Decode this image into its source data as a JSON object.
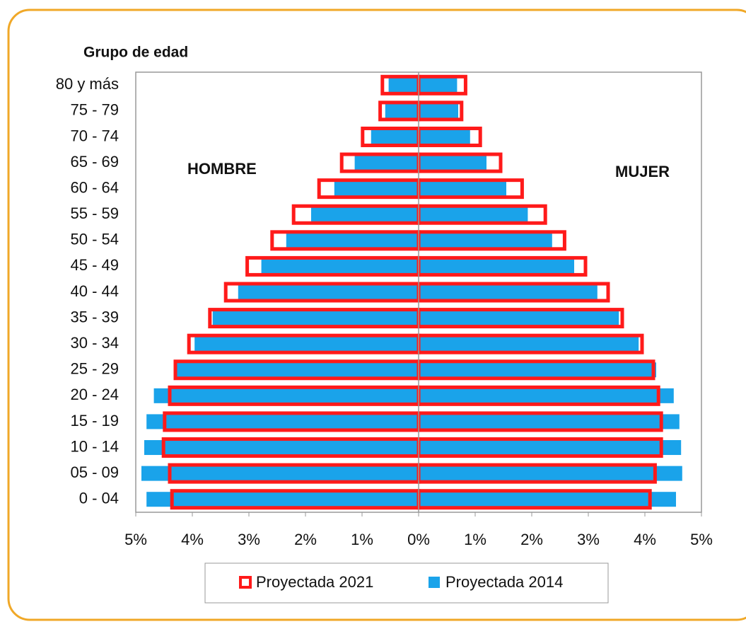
{
  "chart_data": {
    "type": "pyramid",
    "y_axis_label": "Grupo de edad",
    "annotations": [
      "HOMBRE",
      "MUJER"
    ],
    "categories": [
      "80 y más",
      "75 - 79",
      "70 - 74",
      "65 - 69",
      "60 - 64",
      "55 - 59",
      "50 - 54",
      "45 - 49",
      "40 - 44",
      "35 - 39",
      "30 - 34",
      "25 - 29",
      "20 - 24",
      "15 - 19",
      "10 - 14",
      "05 - 09",
      "0 - 04"
    ],
    "series": [
      {
        "name": "Proyectada 2021",
        "color": "#ff1a1a",
        "style": "outline",
        "hombre": [
          -0.64,
          -0.68,
          -0.99,
          -1.36,
          -1.76,
          -2.21,
          -2.59,
          -3.03,
          -3.41,
          -3.69,
          -4.06,
          -4.3,
          -4.4,
          -4.49,
          -4.51,
          -4.4,
          -4.36
        ],
        "mujer": [
          0.83,
          0.76,
          1.09,
          1.45,
          1.83,
          2.24,
          2.58,
          2.95,
          3.35,
          3.6,
          3.95,
          4.15,
          4.24,
          4.29,
          4.29,
          4.18,
          4.09
        ]
      },
      {
        "name": "Proyectada 2014",
        "color": "#1aa3ea",
        "style": "fill",
        "hombre": [
          -0.53,
          -0.59,
          -0.84,
          -1.13,
          -1.49,
          -1.9,
          -2.34,
          -2.78,
          -3.19,
          -3.64,
          -3.96,
          -4.31,
          -4.68,
          -4.81,
          -4.85,
          -4.9,
          -4.81
        ],
        "mujer": [
          0.68,
          0.7,
          0.91,
          1.2,
          1.55,
          1.93,
          2.36,
          2.75,
          3.16,
          3.54,
          3.89,
          4.2,
          4.51,
          4.61,
          4.64,
          4.66,
          4.55
        ]
      }
    ],
    "xlim": [
      -5,
      5
    ],
    "xticks": [
      {
        "value": -5,
        "label": "5%"
      },
      {
        "value": -4,
        "label": "4%"
      },
      {
        "value": -3,
        "label": "3%"
      },
      {
        "value": -2,
        "label": "2%"
      },
      {
        "value": -1,
        "label": "1%"
      },
      {
        "value": 0,
        "label": "0%"
      },
      {
        "value": 1,
        "label": "1%"
      },
      {
        "value": 2,
        "label": "2%"
      },
      {
        "value": 3,
        "label": "3%"
      },
      {
        "value": 4,
        "label": "4%"
      },
      {
        "value": 5,
        "label": "5%"
      }
    ]
  }
}
